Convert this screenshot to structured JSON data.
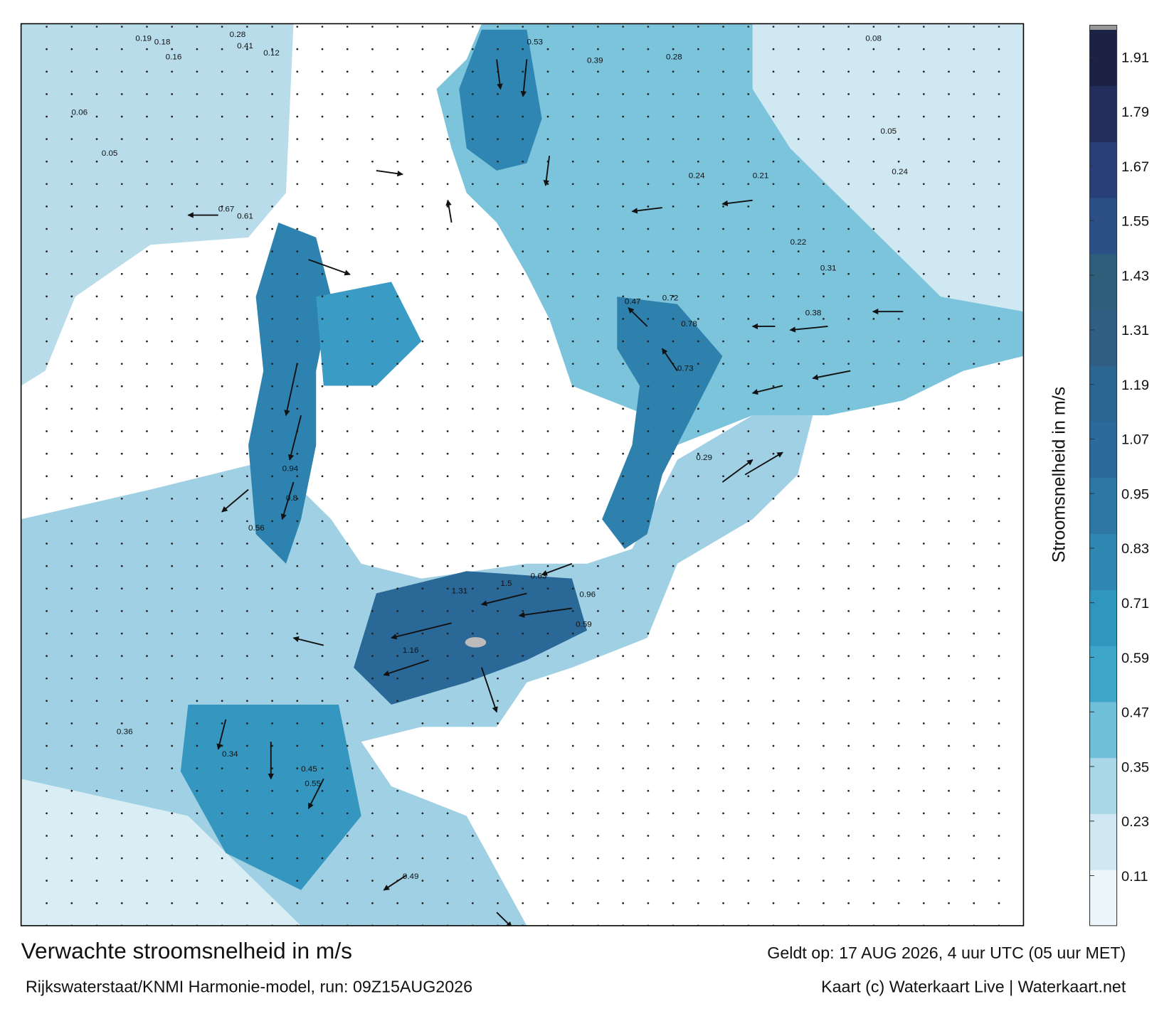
{
  "header": {
    "title": "Verwachte stroomsnelheid in m/s",
    "valid_time": "Geldt op: 17 AUG 2026, 4 uur UTC (05 uur MET)"
  },
  "footer": {
    "source": "Rijkswaterstaat/KNMI Harmonie-model, run: 09Z15AUG2026",
    "credit": "Kaart (c) Waterkaart Live | Waterkaart.net"
  },
  "colorbar": {
    "label": "Stroomsnelheid in m/s",
    "lim": [
      0,
      1.97
    ],
    "ticks": [
      0.11,
      0.23,
      0.35,
      0.47,
      0.59,
      0.71,
      0.83,
      0.95,
      1.07,
      1.19,
      1.31,
      1.43,
      1.55,
      1.67,
      1.79,
      1.91
    ],
    "colors": [
      "#edf6fa",
      "#cfe8f1",
      "#a9d7e7",
      "#6fbfd8",
      "#3ea6c9",
      "#3196bd",
      "#2e87b1",
      "#2e77a5",
      "#2c6a9b",
      "#2b6592",
      "#2f5d84",
      "#2d5f7a",
      "#2c4f88",
      "#283f78",
      "#242e5c",
      "#1c2244"
    ]
  },
  "map": {
    "value_labels": [
      0.19,
      0.18,
      0.16,
      0.28,
      0.41,
      0.39,
      0.28,
      0.24,
      0.21,
      0.12,
      0.06,
      0.05,
      0.67,
      0.61,
      0.47,
      0.72,
      0.78,
      0.94,
      0.8,
      0.73,
      0.63,
      1.31,
      1.5,
      1.16,
      0.96,
      0.59,
      0.56,
      0.34,
      0.45,
      0.55,
      0.49,
      0.36,
      0.22,
      0.24,
      0.05,
      0.08,
      0.29,
      0.31,
      0.53,
      0.38
    ]
  }
}
